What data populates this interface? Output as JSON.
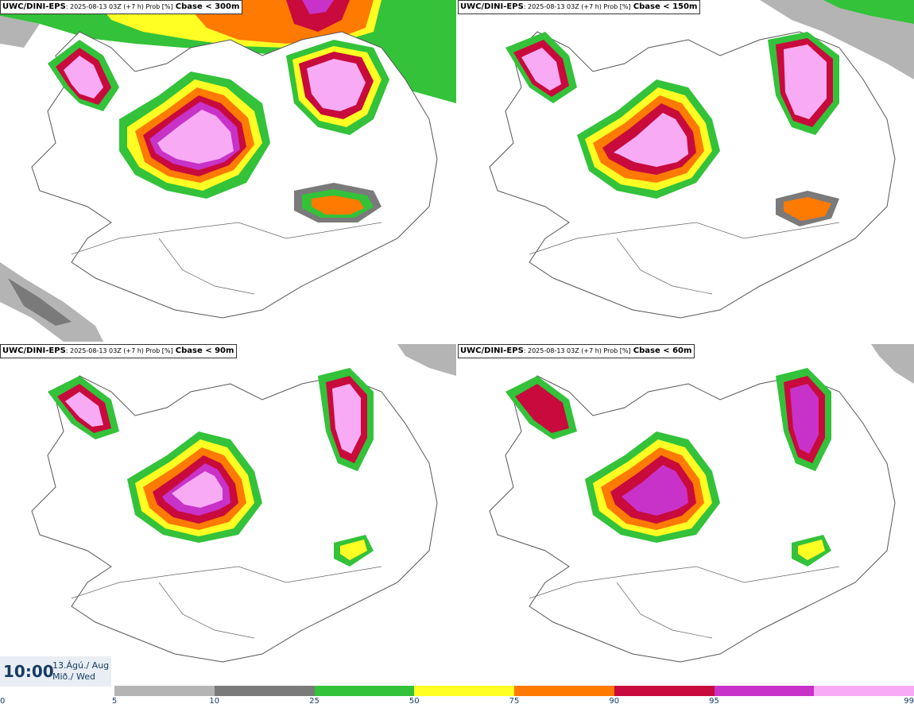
{
  "panels": [
    {
      "model": "UWC/DINI-EPS",
      "run": ": 2025-08-13 03Z (+7 h) Prob [%]",
      "param": "Cbase < 300m"
    },
    {
      "model": "UWC/DINI-EPS",
      "run": ": 2025-08-13 03Z (+7 h) Prob [%]",
      "param": "Cbase < 150m"
    },
    {
      "model": "UWC/DINI-EPS",
      "run": ": 2025-08-13 03Z (+7 h) Prob [%]",
      "param": "Cbase < 90m"
    },
    {
      "model": "UWC/DINI-EPS",
      "run": ": 2025-08-13 03Z (+7 h) Prob [%]",
      "param": "Cbase < 60m"
    }
  ],
  "valid_time": {
    "time": "10:00",
    "date_line1": "13.Ágú./ Aug",
    "date_line2": "Mið./ Wed"
  },
  "legend": {
    "ticks": [
      "0",
      "5",
      "10",
      "25",
      "50",
      "75",
      "90",
      "95",
      "99"
    ],
    "colors": [
      "#b4b4b4",
      "#7a7a7a",
      "#33c23a",
      "#ffff24",
      "#ff7a00",
      "#c80a3c",
      "#c832c8",
      "#f9aaf5"
    ]
  },
  "map_colors": {
    "p5": "#b4b4b4",
    "p10": "#7a7a7a",
    "p25": "#33c23a",
    "p50": "#ffff24",
    "p75": "#ff7a00",
    "p90": "#c80a3c",
    "p95": "#c832c8",
    "p99": "#f9aaf5"
  }
}
